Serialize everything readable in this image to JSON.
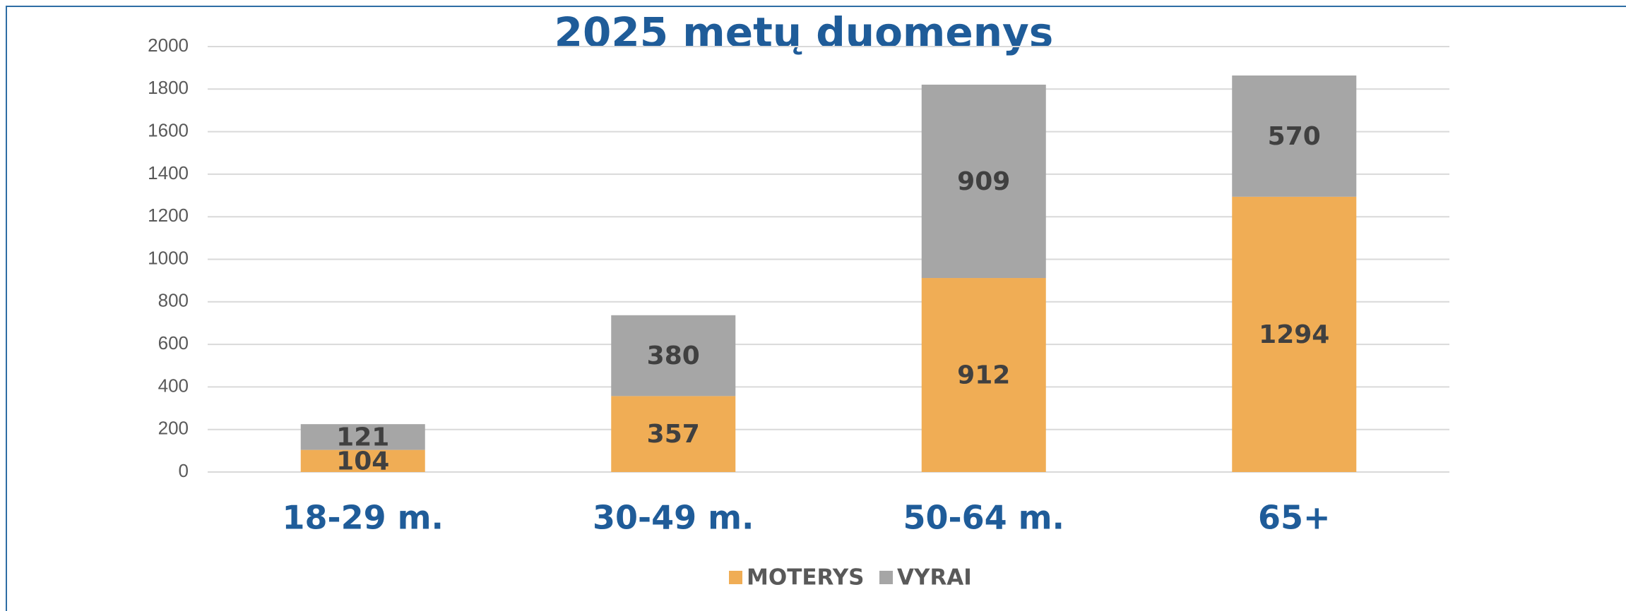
{
  "chart_data": {
    "type": "stacked_bar",
    "title": "2025 metų duomenys",
    "categories": [
      "18-29 m.",
      "30-49 m.",
      "50-64 m.",
      "65+"
    ],
    "series": [
      {
        "name": "MOTERYS",
        "color": "#f0ad55",
        "values": [
          104,
          357,
          912,
          1294
        ]
      },
      {
        "name": "VYRAI",
        "color": "#a6a6a6",
        "values": [
          121,
          380,
          909,
          570
        ]
      }
    ],
    "ylim": [
      0,
      2000
    ],
    "yticks": [
      0,
      200,
      400,
      600,
      800,
      1000,
      1200,
      1400,
      1600,
      1800,
      2000
    ],
    "grid": true,
    "legend": "bottom"
  }
}
